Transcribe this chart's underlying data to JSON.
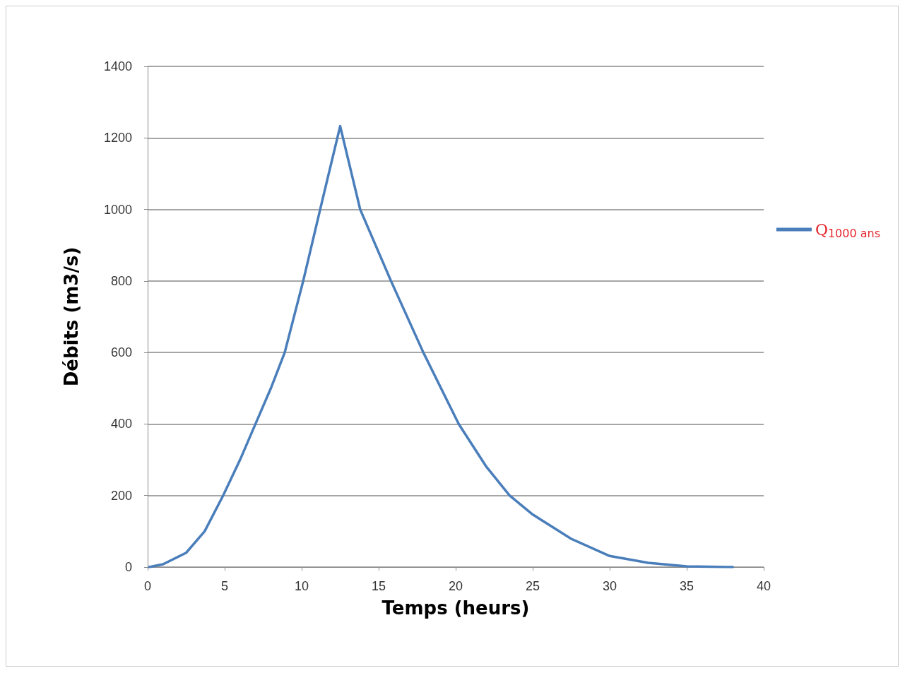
{
  "chart_data": {
    "type": "line",
    "xlabel": "Temps (heurs)",
    "ylabel": "Débits (m3/s)",
    "xlim": [
      0,
      40
    ],
    "xticks": [
      0,
      5,
      10,
      15,
      20,
      25,
      30,
      35,
      40
    ],
    "ylim": [
      0,
      1400
    ],
    "yticks": [
      0,
      200,
      400,
      600,
      800,
      1000,
      1200,
      1400
    ],
    "grid": "y",
    "legend": "right",
    "marker": "none",
    "line_style": "solid",
    "series": [
      {
        "name": "Q$_{1000 ans}$",
        "color": "#4a7ebb",
        "x": [
          0.1,
          1,
          2.5,
          3.7,
          4.9,
          6,
          7,
          8,
          8.9,
          10.1,
          11.2,
          12.5,
          13.8,
          15.8,
          17.9,
          20.2,
          22,
          23.5,
          25,
          27.5,
          30,
          32.5,
          35,
          38
        ],
        "values": [
          0,
          8,
          40,
          100,
          200,
          300,
          400,
          500,
          600,
          800,
          1000,
          1233,
          1000,
          800,
          600,
          400,
          280,
          200,
          147,
          79,
          31,
          12,
          2,
          0
        ]
      }
    ]
  }
}
